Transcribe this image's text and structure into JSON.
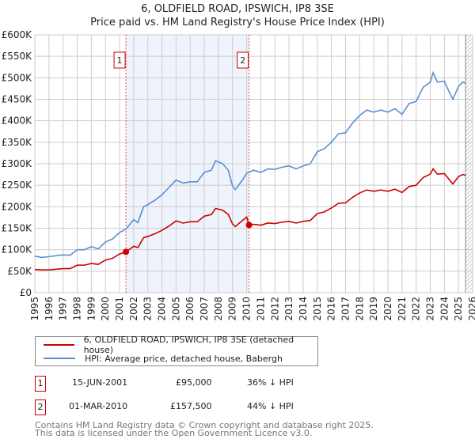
{
  "title": "6, OLDFIELD ROAD, IPSWICH, IP8 3SE",
  "subtitle": "Price paid vs. HM Land Registry's House Price Index (HPI)",
  "chart_data": {
    "type": "line",
    "title": "6, OLDFIELD ROAD, IPSWICH, IP8 3SE — Price paid vs. HM Land Registry's House Price Index (HPI)",
    "xlim": [
      1995,
      2026
    ],
    "ylim": [
      0,
      600000
    ],
    "x_ticks": [
      "1995",
      "1996",
      "1997",
      "1998",
      "1999",
      "2000",
      "2001",
      "2002",
      "2003",
      "2004",
      "2005",
      "2006",
      "2007",
      "2008",
      "2009",
      "2010",
      "2011",
      "2012",
      "2013",
      "2014",
      "2015",
      "2016",
      "2017",
      "2018",
      "2019",
      "2020",
      "2021",
      "2022",
      "2023",
      "2024",
      "2025",
      "2026"
    ],
    "y_ticks": [
      {
        "v": 0,
        "label": "£0"
      },
      {
        "v": 50000,
        "label": "£50K"
      },
      {
        "v": 100000,
        "label": "£100K"
      },
      {
        "v": 150000,
        "label": "£150K"
      },
      {
        "v": 200000,
        "label": "£200K"
      },
      {
        "v": 250000,
        "label": "£250K"
      },
      {
        "v": 300000,
        "label": "£300K"
      },
      {
        "v": 350000,
        "label": "£350K"
      },
      {
        "v": 400000,
        "label": "£400K"
      },
      {
        "v": 450000,
        "label": "£450K"
      },
      {
        "v": 500000,
        "label": "£500K"
      },
      {
        "v": 550000,
        "label": "£550K"
      },
      {
        "v": 600000,
        "label": "£600K"
      }
    ],
    "grid": true,
    "shaded_range": [
      2001.45,
      2010.17
    ],
    "hatched_from": 2025.5,
    "series": [
      {
        "name": "6, OLDFIELD ROAD, IPSWICH, IP8 3SE (detached house)",
        "color": "#cc0000",
        "x": [
          1995,
          1995.5,
          1996,
          1997,
          1997.5,
          1998,
          1998.5,
          1999,
          1999.5,
          2000,
          2000.5,
          2001,
          2001.45,
          2002,
          2002.3,
          2002.7,
          2003,
          2003.5,
          2004,
          2004.5,
          2005,
          2005.5,
          2006,
          2006.5,
          2007,
          2007.5,
          2007.8,
          2008.3,
          2008.7,
          2009,
          2009.2,
          2009.7,
          2010,
          2010.17,
          2010.5,
          2011,
          2011.5,
          2012,
          2012.5,
          2013,
          2013.5,
          2014,
          2014.5,
          2015,
          2015.5,
          2016,
          2016.5,
          2017,
          2017.5,
          2018,
          2018.5,
          2019,
          2019.5,
          2020,
          2020.5,
          2021,
          2021.5,
          2022,
          2022.5,
          2023,
          2023.2,
          2023.5,
          2024,
          2024.3,
          2024.6,
          2025,
          2025.3,
          2025.5
        ],
        "y": [
          54000,
          53000,
          53000,
          56000,
          56000,
          64000,
          64000,
          68000,
          66000,
          76000,
          80000,
          90000,
          95000,
          108000,
          105000,
          128000,
          131000,
          137000,
          145000,
          155000,
          167000,
          162000,
          165000,
          165000,
          178000,
          182000,
          196000,
          192000,
          182000,
          160000,
          154000,
          168000,
          176000,
          157500,
          159000,
          157000,
          162000,
          161000,
          164000,
          166000,
          162000,
          166000,
          168000,
          184000,
          188000,
          197000,
          208000,
          209000,
          222000,
          232000,
          239000,
          236000,
          239000,
          236000,
          241000,
          233000,
          247000,
          250000,
          268000,
          276000,
          288000,
          276000,
          277000,
          265000,
          253000,
          270000,
          275000,
          273000
        ]
      },
      {
        "name": "HPI: Average price, detached house, Babergh",
        "color": "#5b8fd0",
        "x": [
          1995,
          1995.5,
          1996,
          1997,
          1997.5,
          1998,
          1998.5,
          1999,
          1999.5,
          2000,
          2000.5,
          2001,
          2001.45,
          2002,
          2002.3,
          2002.7,
          2003,
          2003.5,
          2004,
          2004.5,
          2005,
          2005.5,
          2006,
          2006.5,
          2007,
          2007.5,
          2007.8,
          2008.3,
          2008.7,
          2009,
          2009.2,
          2009.7,
          2010,
          2010.5,
          2011,
          2011.5,
          2012,
          2012.5,
          2013,
          2013.5,
          2014,
          2014.5,
          2015,
          2015.5,
          2016,
          2016.5,
          2017,
          2017.5,
          2018,
          2018.5,
          2019,
          2019.5,
          2020,
          2020.5,
          2021,
          2021.5,
          2022,
          2022.5,
          2023,
          2023.2,
          2023.5,
          2024,
          2024.3,
          2024.6,
          2025,
          2025.3,
          2025.5
        ],
        "y": [
          85000,
          82000,
          84000,
          88000,
          87000,
          100000,
          100000,
          107000,
          102000,
          118000,
          125000,
          140000,
          148000,
          170000,
          163000,
          200000,
          205000,
          215000,
          228000,
          245000,
          262000,
          255000,
          258000,
          258000,
          280000,
          285000,
          307000,
          300000,
          285000,
          248000,
          240000,
          262000,
          278000,
          285000,
          280000,
          288000,
          287000,
          292000,
          295000,
          288000,
          295000,
          300000,
          328000,
          335000,
          350000,
          370000,
          372000,
          395000,
          412000,
          425000,
          420000,
          425000,
          420000,
          428000,
          415000,
          440000,
          445000,
          478000,
          490000,
          512000,
          490000,
          492000,
          470000,
          450000,
          480000,
          490000,
          487000
        ]
      }
    ],
    "markers": [
      {
        "label": "1",
        "x": 2001.45,
        "y": 95000
      },
      {
        "label": "2",
        "x": 2010.17,
        "y": 157500
      }
    ]
  },
  "legend": [
    {
      "label": "6, OLDFIELD ROAD, IPSWICH, IP8 3SE (detached house)",
      "color": "#cc0000"
    },
    {
      "label": "HPI: Average price, detached house, Babergh",
      "color": "#5b8fd0"
    }
  ],
  "transactions": [
    {
      "num": "1",
      "date": "15-JUN-2001",
      "price": "£95,000",
      "hpi": "36% ↓ HPI"
    },
    {
      "num": "2",
      "date": "01-MAR-2010",
      "price": "£157,500",
      "hpi": "44% ↓ HPI"
    }
  ],
  "footer": [
    "Contains HM Land Registry data © Crown copyright and database right 2025.",
    "This data is licensed under the Open Government Licence v3.0."
  ]
}
